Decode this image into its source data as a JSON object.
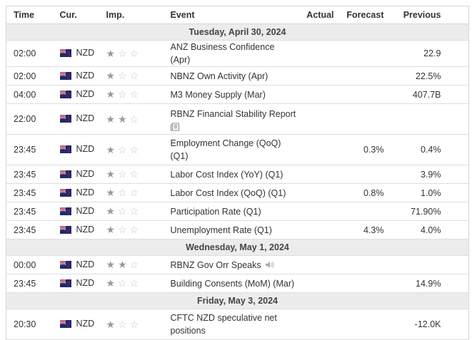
{
  "header": {
    "columns": [
      "Time",
      "Cur.",
      "Imp.",
      "Event",
      "Actual",
      "Forecast",
      "Previous"
    ]
  },
  "groups": [
    {
      "date": "Tuesday, April 30, 2024",
      "rows": [
        {
          "time": "02:00",
          "currency": "NZD",
          "importance": 1,
          "event": "ANZ Business Confidence (Apr)",
          "previous": "22.9"
        },
        {
          "time": "02:00",
          "currency": "NZD",
          "importance": 1,
          "event": "NBNZ Own Activity (Apr)",
          "previous": "22.5%"
        },
        {
          "time": "04:00",
          "currency": "NZD",
          "importance": 1,
          "event": "M3 Money Supply (Mar)",
          "previous": "407.7B"
        },
        {
          "time": "22:00",
          "currency": "NZD",
          "importance": 2,
          "event": "RBNZ Financial Stability Report"
        },
        {
          "time": "23:45",
          "currency": "NZD",
          "importance": 1,
          "event": "Employment Change (QoQ) (Q1)",
          "forecast": "0.3%",
          "previous": "0.4%"
        },
        {
          "time": "23:45",
          "currency": "NZD",
          "importance": 1,
          "event": "Labor Cost Index (YoY) (Q1)",
          "previous": "3.9%"
        },
        {
          "time": "23:45",
          "currency": "NZD",
          "importance": 1,
          "event": "Labor Cost Index (QoQ) (Q1)",
          "forecast": "0.8%",
          "previous": "1.0%"
        },
        {
          "time": "23:45",
          "currency": "NZD",
          "importance": 1,
          "event": "Participation Rate (Q1)",
          "previous": "71.90%"
        },
        {
          "time": "23:45",
          "currency": "NZD",
          "importance": 1,
          "event": "Unemployment Rate (Q1)",
          "forecast": "4.3%",
          "previous": "4.0%"
        }
      ]
    },
    {
      "date": "Wednesday, May 1, 2024",
      "rows": [
        {
          "time": "00:00",
          "currency": "NZD",
          "importance": 2,
          "event": "RBNZ Gov Orr Speaks"
        },
        {
          "time": "23:45",
          "currency": "NZD",
          "importance": 1,
          "event": "Building Consents (MoM) (Mar)",
          "previous": "14.9%"
        }
      ]
    },
    {
      "date": "Friday, May 3, 2024",
      "rows": [
        {
          "time": "20:30",
          "currency": "NZD",
          "importance": 1,
          "event": "CFTC NZD speculative net positions",
          "previous": "-12.0K"
        }
      ]
    }
  ]
}
